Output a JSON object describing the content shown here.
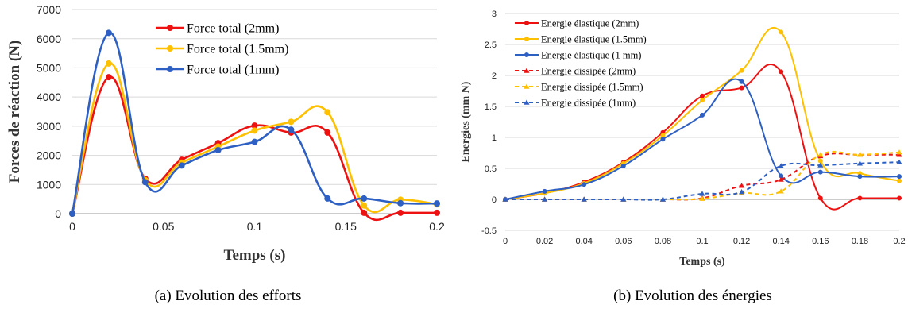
{
  "chart_data": [
    {
      "type": "line",
      "caption": "(a)  Evolution des efforts",
      "xlabel": "Temps (s)",
      "ylabel": "Forces de réaction (N)",
      "xlim": [
        0,
        0.2
      ],
      "ylim": [
        0,
        7000
      ],
      "xticks": [
        0,
        0.05,
        0.1,
        0.15,
        0.2
      ],
      "xtick_labels": [
        "0",
        "0.05",
        "0.1",
        "0.15",
        "0.2"
      ],
      "yticks": [
        0,
        1000,
        2000,
        3000,
        4000,
        5000,
        6000,
        7000
      ],
      "ytick_labels": [
        "0",
        "1000",
        "2000",
        "3000",
        "4000",
        "5000",
        "6000",
        "7000"
      ],
      "grid": "horizontal",
      "legend_position": "top-center",
      "x": [
        0,
        0.02,
        0.04,
        0.06,
        0.08,
        0.1,
        0.12,
        0.14,
        0.16,
        0.18,
        0.2
      ],
      "series": [
        {
          "name": "Force total (2mm)",
          "color": "#ee1111",
          "dashed": false,
          "marker": "circle",
          "values": [
            0,
            4680,
            1200,
            1850,
            2420,
            3020,
            2780,
            2780,
            30,
            30,
            30
          ]
        },
        {
          "name": "Force total (1.5mm)",
          "color": "#ffc000",
          "dashed": false,
          "marker": "circle",
          "values": [
            0,
            5150,
            1150,
            1750,
            2300,
            2850,
            3150,
            3480,
            280,
            480,
            320
          ]
        },
        {
          "name": "Force total (1mm)",
          "color": "#2e5fc2",
          "dashed": false,
          "marker": "circle",
          "values": [
            0,
            6200,
            1080,
            1650,
            2180,
            2460,
            2880,
            520,
            520,
            360,
            350
          ]
        }
      ]
    },
    {
      "type": "line",
      "caption": "(b)  Evolution des énergies",
      "xlabel": "Temps (s)",
      "ylabel": "Energies (mm N)",
      "xlim": [
        0,
        0.2
      ],
      "ylim": [
        -0.5,
        3
      ],
      "xticks": [
        0,
        0.02,
        0.04,
        0.06,
        0.08,
        0.1,
        0.12,
        0.14,
        0.16,
        0.18,
        0.2
      ],
      "xtick_labels": [
        "0",
        "0.02",
        "0.04",
        "0.06",
        "0.08",
        "0.1",
        "0.12",
        "0.14",
        "0.16",
        "0.18",
        "0.2"
      ],
      "yticks": [
        -0.5,
        0,
        0.5,
        1,
        1.5,
        2,
        2.5,
        3
      ],
      "ytick_labels": [
        "-0.5",
        "0",
        "0.5",
        "1",
        "1.5",
        "2",
        "2.5",
        "3"
      ],
      "grid": "horizontal",
      "legend_position": "top-left",
      "x": [
        0,
        0.02,
        0.04,
        0.06,
        0.08,
        0.1,
        0.12,
        0.14,
        0.16,
        0.18,
        0.2
      ],
      "series": [
        {
          "name": "Energie élastique (2mm)",
          "color": "#ee1111",
          "dashed": false,
          "marker": "circle",
          "values": [
            0,
            0.1,
            0.28,
            0.6,
            1.08,
            1.67,
            1.8,
            2.06,
            0.02,
            0.02,
            0.02
          ]
        },
        {
          "name": "Energie élastique (1.5mm)",
          "color": "#ffc000",
          "dashed": false,
          "marker": "circle",
          "values": [
            0,
            0.1,
            0.26,
            0.58,
            1.03,
            1.6,
            2.08,
            2.7,
            0.62,
            0.42,
            0.3
          ]
        },
        {
          "name": "Energie élastique (1 mm)",
          "color": "#2e5fc2",
          "dashed": false,
          "marker": "circle",
          "values": [
            0,
            0.13,
            0.24,
            0.54,
            0.97,
            1.36,
            1.9,
            0.38,
            0.44,
            0.37,
            0.37
          ]
        },
        {
          "name": "Energie dissipée (2mm)",
          "color": "#ee1111",
          "dashed": true,
          "marker": "triangle",
          "values": [
            0,
            0,
            0,
            0,
            0,
            0.02,
            0.22,
            0.32,
            0.7,
            0.72,
            0.72
          ]
        },
        {
          "name": "Energie dissipée (1.5mm)",
          "color": "#ffc000",
          "dashed": true,
          "marker": "triangle",
          "values": [
            0,
            0,
            0,
            0,
            0,
            0.01,
            0.1,
            0.13,
            0.72,
            0.72,
            0.76
          ]
        },
        {
          "name": "Energie dissipée (1mm)",
          "color": "#2e5fc2",
          "dashed": true,
          "marker": "triangle",
          "values": [
            0,
            0,
            0,
            0,
            0,
            0.09,
            0.12,
            0.54,
            0.55,
            0.58,
            0.6
          ]
        }
      ]
    }
  ]
}
